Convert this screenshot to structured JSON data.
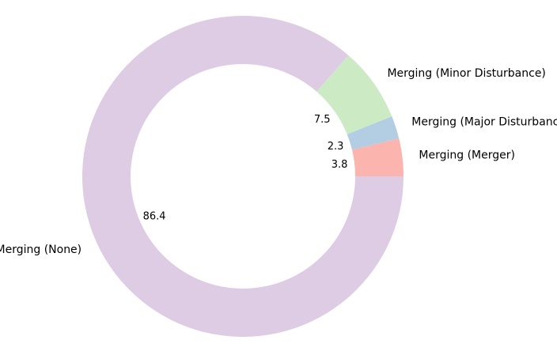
{
  "chart_data": {
    "type": "pie",
    "style": "donut",
    "start_angle_deg": 0,
    "direction": "counterclockwise",
    "slices": [
      {
        "label": "Merging (Merger)",
        "value": 3.8,
        "display": "3.8",
        "color": "#fbb4ae"
      },
      {
        "label": "Merging (Major Disturbance)",
        "value": 2.3,
        "display": "2.3",
        "color": "#b3cde3"
      },
      {
        "label": "Merging (Minor Disturbance)",
        "value": 7.5,
        "display": "7.5",
        "color": "#ccebc5"
      },
      {
        "label": "Merging (None)",
        "value": 86.4,
        "display": "86.4",
        "color": "#decbe4"
      }
    ]
  }
}
